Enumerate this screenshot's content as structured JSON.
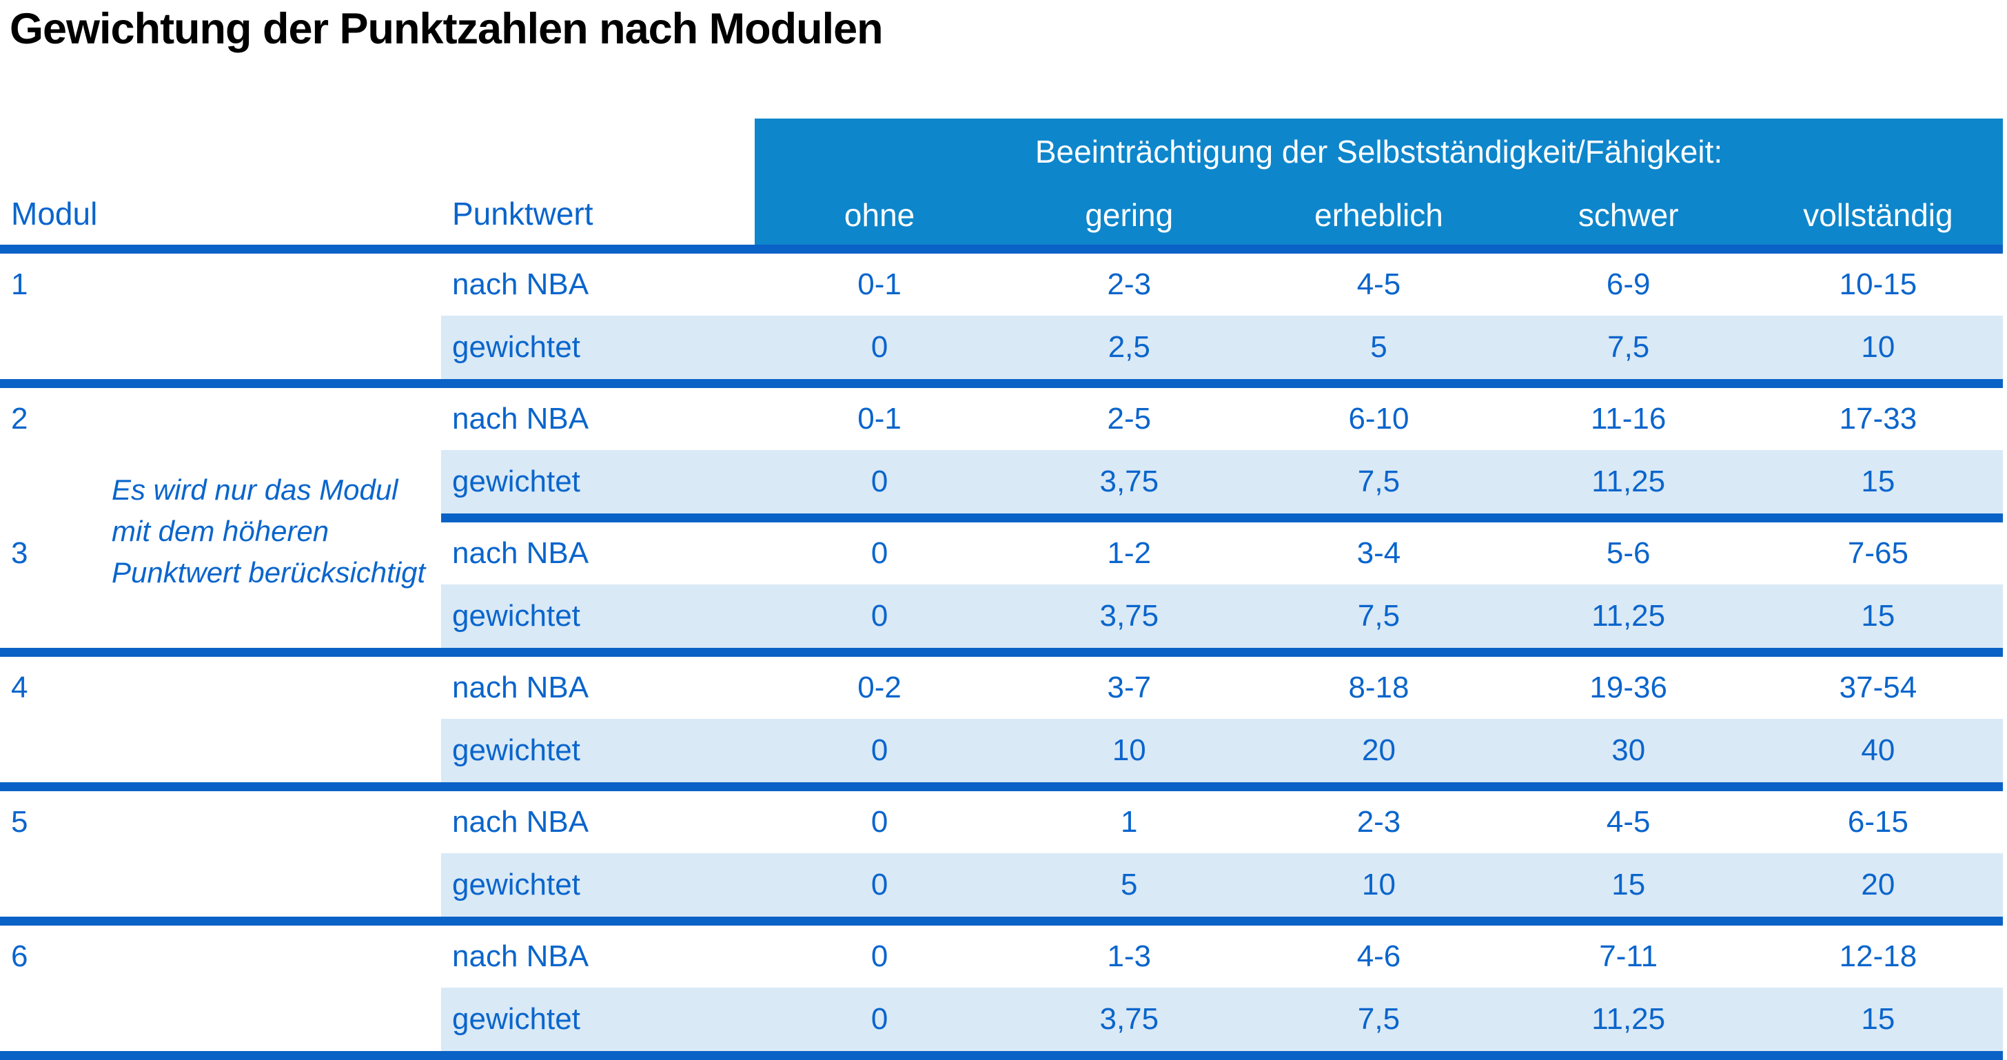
{
  "title": "Gewichtung der Punktzahlen nach Modulen",
  "colors": {
    "header_band_blue": "#0e86cb",
    "divider_blue": "#0a62c6",
    "text_blue": "#0a65cc",
    "weighted_row_blue": "#d9e9f6",
    "title_black": "#000000"
  },
  "table": {
    "group_header": "Beeinträchtigung der Selbstständigkeit/Fähigkeit:",
    "col_modul": "Modul",
    "col_punktwert": "Punktwert",
    "levels": [
      "ohne",
      "gering",
      "erheblich",
      "schwer",
      "vollständig"
    ],
    "row_labels": {
      "nba": "nach NBA",
      "weighted": "gewichtet"
    },
    "note": {
      "line1": "Es wird nur das Modul",
      "line2": "mit dem höheren",
      "line3": "Punktwert berücksichtigt"
    },
    "modules": [
      {
        "id": "1",
        "nba": [
          "0-1",
          "2-3",
          "4-5",
          "6-9",
          "10-15"
        ],
        "weighted": [
          "0",
          "2,5",
          "5",
          "7,5",
          "10"
        ]
      },
      {
        "id": "2",
        "nba": [
          "0-1",
          "2-5",
          "6-10",
          "11-16",
          "17-33"
        ],
        "weighted": [
          "0",
          "3,75",
          "7,5",
          "11,25",
          "15"
        ]
      },
      {
        "id": "3",
        "nba": [
          "0",
          "1-2",
          "3-4",
          "5-6",
          "7-65"
        ],
        "weighted": [
          "0",
          "3,75",
          "7,5",
          "11,25",
          "15"
        ]
      },
      {
        "id": "4",
        "nba": [
          "0-2",
          "3-7",
          "8-18",
          "19-36",
          "37-54"
        ],
        "weighted": [
          "0",
          "10",
          "20",
          "30",
          "40"
        ]
      },
      {
        "id": "5",
        "nba": [
          "0",
          "1",
          "2-3",
          "4-5",
          "6-15"
        ],
        "weighted": [
          "0",
          "5",
          "10",
          "15",
          "20"
        ]
      },
      {
        "id": "6",
        "nba": [
          "0",
          "1-3",
          "4-6",
          "7-11",
          "12-18"
        ],
        "weighted": [
          "0",
          "3,75",
          "7,5",
          "11,25",
          "15"
        ]
      }
    ]
  }
}
